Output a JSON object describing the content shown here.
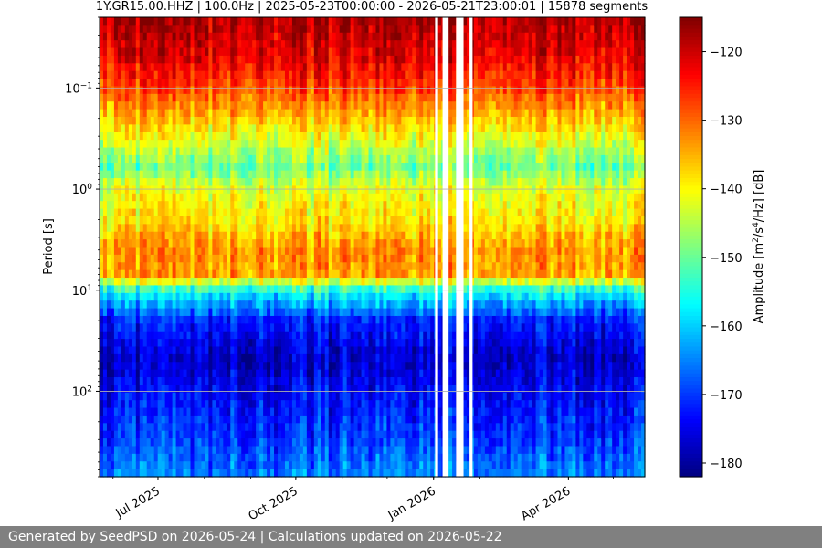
{
  "footer": {
    "text": "Generated by SeedPSD on 2026-05-24 | Calculations updated on 2026-05-22"
  },
  "chart_data": {
    "type": "heatmap",
    "title": "1Y.GR15.00.HHZ | 100.0Hz | 2025-05-23T00:00:00 - 2026-05-21T23:00:01 | 15878 segments",
    "ylabel": "Period [s]",
    "colorbar_label_parts": [
      "Amplitude [m",
      "2",
      "/s",
      "4",
      "/Hz] [dB]"
    ],
    "x_range": [
      "2025-05-23",
      "2026-05-22"
    ],
    "x_ticks": [
      {
        "date": "2025-07-01",
        "label": "Jul 2025"
      },
      {
        "date": "2025-10-01",
        "label": "Oct 2025"
      },
      {
        "date": "2026-01-01",
        "label": "Jan 2026"
      },
      {
        "date": "2026-04-01",
        "label": "Apr 2026"
      }
    ],
    "y_scale": "log",
    "y_inverted": true,
    "y_range_s": [
      0.02,
      700
    ],
    "y_ticks": [
      {
        "value": 0.1,
        "base": "10",
        "exp": "−1"
      },
      {
        "value": 1,
        "base": "10",
        "exp": "0"
      },
      {
        "value": 10,
        "base": "10",
        "exp": "1"
      },
      {
        "value": 100,
        "base": "10",
        "exp": "2"
      }
    ],
    "grid": true,
    "colormap": "jet",
    "color_range_db": [
      -182,
      -115
    ],
    "colorbar_ticks": [
      -120,
      -130,
      -140,
      -150,
      -160,
      -170,
      -180
    ],
    "spectral_profile": {
      "period_s": [
        0.02,
        0.05,
        0.1,
        0.3,
        0.6,
        1,
        2,
        4,
        7,
        10,
        20,
        50,
        100,
        300,
        700
      ],
      "amplitude_db": [
        -118,
        -122,
        -128,
        -141,
        -150,
        -142,
        -139,
        -133,
        -134,
        -155,
        -172,
        -178,
        -174,
        -170,
        -165
      ]
    },
    "data_gaps": [
      [
        "2026-01-02",
        "2026-01-04"
      ],
      [
        "2026-01-07",
        "2026-01-11"
      ],
      [
        "2026-01-16",
        "2026-01-21"
      ],
      [
        "2026-01-25",
        "2026-01-27"
      ]
    ]
  }
}
